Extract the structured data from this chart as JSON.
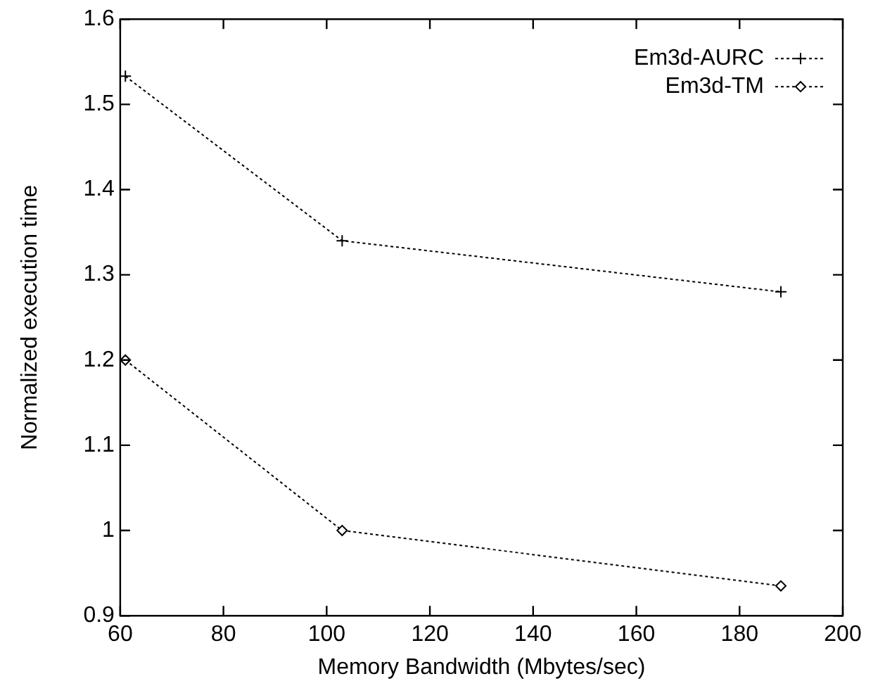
{
  "chart_data": {
    "type": "line",
    "xlabel": "Memory Bandwidth (Mbytes/sec)",
    "ylabel": "Normalized execution time",
    "x": [
      61,
      103,
      188
    ],
    "series": [
      {
        "name": "Em3d-AURC",
        "color": "#000000",
        "marker": "cross",
        "values": [
          1.533,
          1.34,
          1.28
        ]
      },
      {
        "name": "Em3d-TM",
        "color": "#000000",
        "marker": "diamond",
        "values": [
          1.2,
          1.0,
          0.935
        ]
      }
    ],
    "xlim": [
      60,
      200
    ],
    "xticks": [
      60,
      80,
      100,
      120,
      140,
      160,
      180,
      200
    ],
    "ylim": [
      0.9,
      1.6
    ],
    "yticks": [
      0.9,
      1,
      1.1,
      1.2,
      1.3,
      1.4,
      1.5,
      1.6
    ],
    "legend": "top right",
    "line_style": "dotted"
  }
}
